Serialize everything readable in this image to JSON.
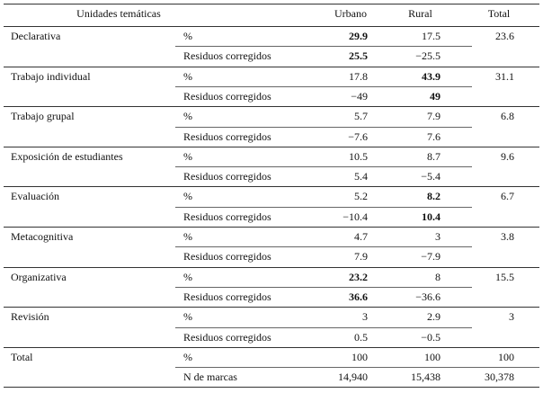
{
  "table": {
    "header": [
      "Unidades temáticas",
      "Urbano",
      "Rural",
      "Total"
    ],
    "groups": [
      {
        "name": "Declarativa",
        "total": "23.6",
        "rows": [
          {
            "label": "%",
            "cells": [
              "29.9",
              "17.5"
            ],
            "bold": [
              true,
              false
            ]
          },
          {
            "label": "Residuos corregidos",
            "cells": [
              "25.5",
              "−25.5"
            ],
            "bold": [
              true,
              false
            ]
          }
        ]
      },
      {
        "name": "Trabajo individual",
        "total": "31.1",
        "rows": [
          {
            "label": "%",
            "cells": [
              "17.8",
              "43.9"
            ],
            "bold": [
              false,
              true
            ]
          },
          {
            "label": "Residuos corregidos",
            "cells": [
              "−49",
              "49"
            ],
            "bold": [
              false,
              true
            ]
          }
        ]
      },
      {
        "name": "Trabajo grupal",
        "total": "6.8",
        "rows": [
          {
            "label": "%",
            "cells": [
              "5.7",
              "7.9"
            ],
            "bold": [
              false,
              false
            ]
          },
          {
            "label": "Residuos corregidos",
            "cells": [
              "−7.6",
              "7.6"
            ],
            "bold": [
              false,
              false
            ]
          }
        ]
      },
      {
        "name": "Exposición de estudiantes",
        "total": "9.6",
        "rows": [
          {
            "label": "%",
            "cells": [
              "10.5",
              "8.7"
            ],
            "bold": [
              false,
              false
            ]
          },
          {
            "label": "Residuos corregidos",
            "cells": [
              "5.4",
              "−5.4"
            ],
            "bold": [
              false,
              false
            ]
          }
        ]
      },
      {
        "name": "Evaluación",
        "total": "6.7",
        "rows": [
          {
            "label": "%",
            "cells": [
              "5.2",
              "8.2"
            ],
            "bold": [
              false,
              true
            ]
          },
          {
            "label": "Residuos corregidos",
            "cells": [
              "−10.4",
              "10.4"
            ],
            "bold": [
              false,
              true
            ]
          }
        ]
      },
      {
        "name": "Metacognitiva",
        "total": "3.8",
        "rows": [
          {
            "label": "%",
            "cells": [
              "4.7",
              "3"
            ],
            "bold": [
              false,
              false
            ]
          },
          {
            "label": "Residuos corregidos",
            "cells": [
              "7.9",
              "−7.9"
            ],
            "bold": [
              false,
              false
            ]
          }
        ]
      },
      {
        "name": "Organizativa",
        "total": "15.5",
        "rows": [
          {
            "label": "%",
            "cells": [
              "23.2",
              "8"
            ],
            "bold": [
              true,
              false
            ]
          },
          {
            "label": "Residuos corregidos",
            "cells": [
              "36.6",
              "−36.6"
            ],
            "bold": [
              true,
              false
            ]
          }
        ]
      },
      {
        "name": "Revisión",
        "total": "3",
        "rows": [
          {
            "label": "%",
            "cells": [
              "3",
              "2.9"
            ],
            "bold": [
              false,
              false
            ]
          },
          {
            "label": "Residuos corregidos",
            "cells": [
              "0.5",
              "−0.5"
            ],
            "bold": [
              false,
              false
            ]
          }
        ]
      }
    ],
    "footer": {
      "name": "Total",
      "rows": [
        {
          "label": "%",
          "cells": [
            "100",
            "100",
            "100"
          ]
        },
        {
          "label": "N de marcas",
          "cells": [
            "14,940",
            "15,438",
            "30,378"
          ]
        }
      ]
    }
  }
}
